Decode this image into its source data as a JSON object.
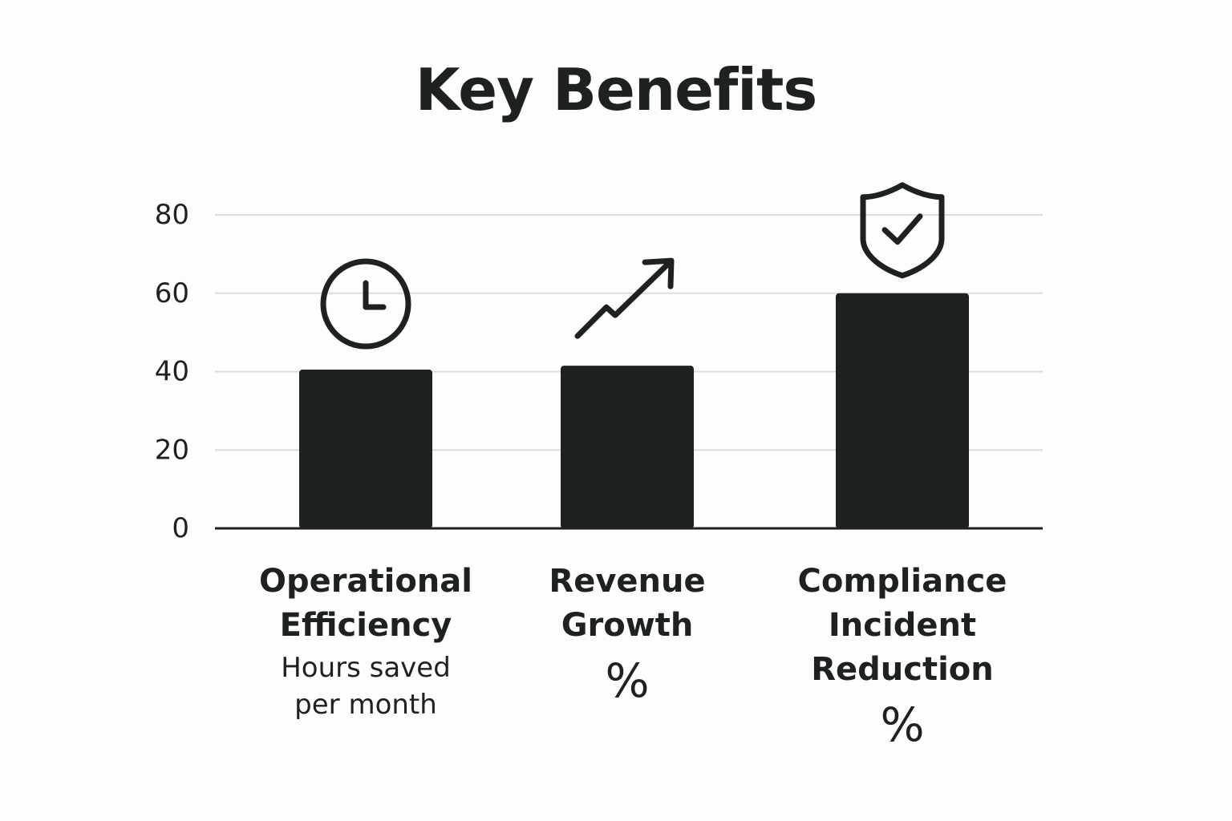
{
  "chart_data": {
    "type": "bar",
    "title": "Key Benefits",
    "categories": [
      "Operational\nEfficiency",
      "Revenue\nGrowth",
      "Compliance\nIncident\nReduction"
    ],
    "units": [
      "Hours saved\nper month",
      "%",
      "%"
    ],
    "values": [
      40.5,
      41.5,
      60
    ],
    "icons": [
      "clock-icon",
      "trend-up-arrow-icon",
      "shield-check-icon"
    ],
    "yticks": [
      0,
      20,
      40,
      60,
      80
    ],
    "ylim": [
      0,
      80
    ],
    "grid": true,
    "xlabel": "",
    "ylabel": "",
    "colors": {
      "bar": "#1e2122",
      "grid": "#dcdcdc",
      "axis": "#1e2122",
      "text": "#1e2122",
      "background": "#fdfdfc"
    }
  }
}
